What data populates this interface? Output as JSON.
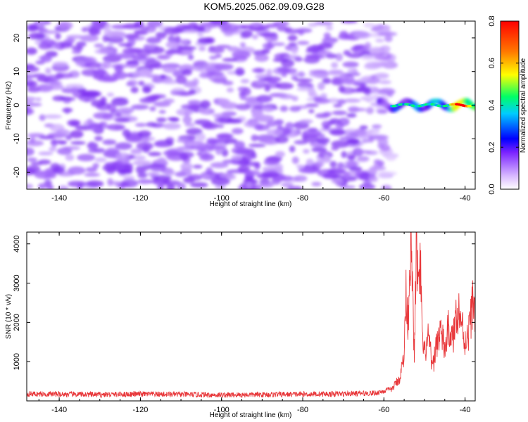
{
  "title": "KOM5.2025.062.09.09.G28",
  "chart_data": [
    {
      "type": "heatmap",
      "xlabel": "Height of straight line (km)",
      "ylabel": "Frequency (Hz)",
      "xlim": [
        -148,
        -37.5
      ],
      "ylim": [
        -25,
        25
      ],
      "xticks": [
        -140,
        -120,
        -100,
        -80,
        -60,
        -40
      ],
      "yticks": [
        -20,
        -10,
        0,
        10,
        20
      ],
      "colorbar": {
        "label": "Normalized spectral amplitude",
        "range": [
          0,
          0.8
        ],
        "ticks": [
          0,
          0.2,
          0.4,
          0.6,
          0.8
        ]
      },
      "noise_band_x": [
        -148,
        -58
      ],
      "noise_band_amplitude": [
        0.05,
        0.18
      ],
      "signal": {
        "x_range": [
          -61,
          -37.5
        ],
        "freq_center_hz": 0,
        "peak_amplitude": 0.8,
        "peak_x": -41
      },
      "grid": false
    },
    {
      "type": "line",
      "xlabel": "Height of straight line (km)",
      "ylabel": "SNR (10 * v/v)",
      "xlim": [
        -148,
        -37.5
      ],
      "ylim": [
        0,
        4300
      ],
      "xticks": [
        -140,
        -120,
        -100,
        -80,
        -60,
        -40
      ],
      "yticks": [
        1000,
        2000,
        3000,
        4000
      ],
      "series": [
        {
          "color": "#e8373a",
          "x": [
            -148,
            -140,
            -130,
            -120,
            -110,
            -100,
            -90,
            -80,
            -70,
            -62,
            -58,
            -56,
            -55,
            -54.5,
            -54,
            -53.5,
            -53,
            -52.5,
            -52,
            -51.5,
            -51,
            -50.5,
            -50,
            -49,
            -48,
            -47,
            -46,
            -45,
            -44,
            -43,
            -42,
            -41,
            -40,
            -39,
            -38.5,
            -38,
            -37.5
          ],
          "y": [
            180,
            170,
            160,
            175,
            165,
            150,
            160,
            170,
            180,
            200,
            300,
            600,
            1200,
            2900,
            2000,
            4100,
            3000,
            1000,
            4300,
            2500,
            3500,
            1400,
            1200,
            1600,
            800,
            1500,
            1800,
            1300,
            1900,
            1500,
            2400,
            2100,
            1500,
            1800,
            2200,
            2600,
            2300
          ]
        }
      ],
      "grid": false
    }
  ]
}
